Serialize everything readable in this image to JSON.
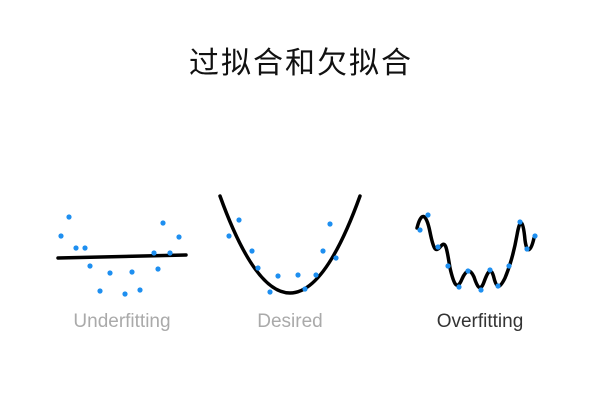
{
  "title": "过拟合和欠拟合",
  "panels": [
    {
      "id": "underfitting",
      "label": "Underfitting",
      "label_color": "#aaaaaa"
    },
    {
      "id": "desired",
      "label": "Desired",
      "label_color": "#aaaaaa"
    },
    {
      "id": "overfitting",
      "label": "Overfitting",
      "label_color": "#333333"
    }
  ],
  "colors": {
    "curve": "#000000",
    "points": "#1e8ff0"
  }
}
